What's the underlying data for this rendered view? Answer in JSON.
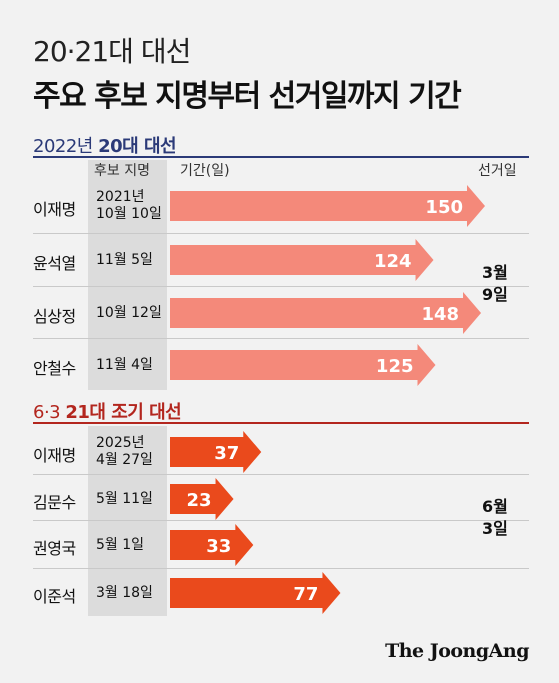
{
  "supertitle": "20·21대 대선",
  "title": "주요 후보 지명부터 선거일까지 기간",
  "columns": {
    "date": "후보 지명",
    "period": "기간(일)",
    "election": "선거일"
  },
  "credit": "The JoongAng",
  "chart_data": [
    {
      "type": "bar",
      "title_pre": "2022년 ",
      "title_bold": "20대 대선",
      "election_day": "3월\n9일",
      "bar_color": "#f4897a",
      "xlim": [
        0,
        160
      ],
      "rows": [
        {
          "name": "이재명",
          "date": "2021년\n10월 10일",
          "value": 150
        },
        {
          "name": "윤석열",
          "date": "11월 5일",
          "value": 124
        },
        {
          "name": "심상정",
          "date": "10월 12일",
          "value": 148
        },
        {
          "name": "안철수",
          "date": "11월 4일",
          "value": 125
        }
      ]
    },
    {
      "type": "bar",
      "title_pre": "6·3 ",
      "title_bold": "21대 조기 대선",
      "election_day": "6월\n3일",
      "bar_color": "#ea4a1c",
      "xlim": [
        0,
        160
      ],
      "rows": [
        {
          "name": "이재명",
          "date": "2025년\n4월 27일",
          "value": 37
        },
        {
          "name": "김문수",
          "date": "5월 11일",
          "value": 23
        },
        {
          "name": "권영국",
          "date": "5월 1일",
          "value": 33
        },
        {
          "name": "이준석",
          "date": "3월 18일",
          "value": 77
        }
      ]
    }
  ]
}
